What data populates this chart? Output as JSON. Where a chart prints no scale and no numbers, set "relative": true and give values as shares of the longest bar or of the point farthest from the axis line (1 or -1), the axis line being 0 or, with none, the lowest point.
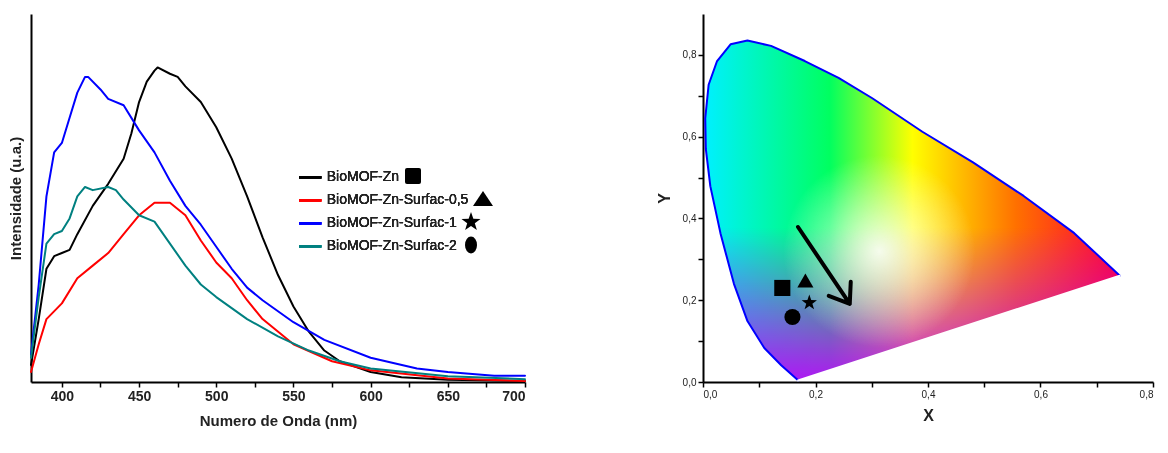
{
  "chart_data": [
    {
      "type": "line",
      "relative": true,
      "xlabel": "Numero de Onda (nm)",
      "ylabel": "Intensidade (u.a.)",
      "xlim": [
        380,
        700
      ],
      "xticks": [
        400,
        {
          "value": 425,
          "label": null
        },
        450,
        {
          "value": 475,
          "label": null
        },
        500,
        {
          "value": 525,
          "label": null
        },
        550,
        {
          "value": 575,
          "label": null
        },
        600,
        {
          "value": 625,
          "label": null
        },
        650,
        {
          "value": 675,
          "label": null
        },
        700
      ],
      "legend": "right",
      "grid": false,
      "marker": "none",
      "line_style": "solid",
      "series": [
        {
          "name": "BioMOF-Zn",
          "color": "#000000",
          "x": [
            380,
            385,
            390,
            395,
            400,
            405,
            410,
            420,
            430,
            440,
            445,
            450,
            455,
            460,
            462,
            470,
            475,
            480,
            490,
            500,
            510,
            520,
            530,
            540,
            550,
            560,
            570,
            580,
            600,
            620,
            650,
            700
          ],
          "values": [
            0.054,
            0.2,
            0.36,
            0.4,
            0.41,
            0.42,
            0.47,
            0.56,
            0.63,
            0.71,
            0.79,
            0.89,
            0.955,
            0.99,
            1,
            0.98,
            0.97,
            0.94,
            0.89,
            0.81,
            0.71,
            0.59,
            0.46,
            0.34,
            0.24,
            0.16,
            0.1,
            0.066,
            0.032,
            0.015,
            0.007,
            0.003
          ]
        },
        {
          "name": "BioMOF-Zn-Surfac-0,5",
          "color": "#ff0000",
          "x": [
            380,
            385,
            390,
            400,
            410,
            420,
            430,
            440,
            450,
            460,
            470,
            480,
            490,
            500,
            510,
            520,
            530,
            550,
            575,
            600,
            650,
            700
          ],
          "values": [
            0.032,
            0.12,
            0.2,
            0.25,
            0.33,
            0.37,
            0.41,
            0.47,
            0.53,
            0.57,
            0.57,
            0.53,
            0.45,
            0.38,
            0.33,
            0.26,
            0.2,
            0.12,
            0.066,
            0.037,
            0.011,
            0.003
          ]
        },
        {
          "name": "BioMOF-Zn-Surfac-1",
          "color": "#0000ff",
          "x": [
            380,
            385,
            390,
            395,
            400,
            405,
            410,
            415,
            417,
            425,
            430,
            440,
            450,
            460,
            470,
            480,
            490,
            500,
            510,
            520,
            530,
            550,
            570,
            600,
            630,
            650,
            680,
            700
          ],
          "values": [
            0.088,
            0.31,
            0.59,
            0.73,
            0.76,
            0.84,
            0.92,
            0.97,
            0.97,
            0.93,
            0.9,
            0.88,
            0.8,
            0.73,
            0.64,
            0.56,
            0.5,
            0.43,
            0.36,
            0.3,
            0.26,
            0.19,
            0.134,
            0.077,
            0.043,
            0.032,
            0.02,
            0.02
          ]
        },
        {
          "name": "BioMOF-Zn-Surfac-2",
          "color": "#008080",
          "x": [
            380,
            385,
            390,
            395,
            400,
            405,
            410,
            415,
            420,
            430,
            435,
            440,
            450,
            460,
            470,
            480,
            490,
            500,
            520,
            540,
            560,
            580,
            600,
            650,
            700
          ],
          "values": [
            0.077,
            0.27,
            0.44,
            0.47,
            0.48,
            0.52,
            0.59,
            0.62,
            0.61,
            0.62,
            0.61,
            0.58,
            0.53,
            0.51,
            0.44,
            0.37,
            0.31,
            0.27,
            0.2,
            0.145,
            0.1,
            0.066,
            0.043,
            0.018,
            0.009
          ]
        }
      ]
    },
    {
      "type": "scatter",
      "xlabel": "X",
      "ylabel": "Y",
      "xlim": [
        0,
        0.8
      ],
      "ylim": [
        0,
        0.9
      ],
      "xticks": [
        {
          "value": 0,
          "label": "0,0"
        },
        {
          "value": 0.1,
          "label": null
        },
        {
          "value": 0.2,
          "label": "0,2"
        },
        {
          "value": 0.3,
          "label": null
        },
        {
          "value": 0.4,
          "label": "0,4"
        },
        {
          "value": 0.5,
          "label": null
        },
        {
          "value": 0.6,
          "label": "0,6"
        },
        {
          "value": 0.7,
          "label": null
        },
        {
          "value": 0.8,
          "label": "0,8"
        }
      ],
      "yticks": [
        {
          "value": 0,
          "label": "0,0"
        },
        {
          "value": 0.1,
          "label": null
        },
        {
          "value": 0.2,
          "label": "0,2"
        },
        {
          "value": 0.3,
          "label": null
        },
        {
          "value": 0.4,
          "label": "0,4"
        },
        {
          "value": 0.5,
          "label": null
        },
        {
          "value": 0.6,
          "label": "0,6"
        },
        {
          "value": 0.7,
          "label": null
        },
        {
          "value": 0.8,
          "label": "0,8"
        }
      ],
      "grid": false,
      "series": [
        {
          "type": "line",
          "color": "#0000ff",
          "x": [
            0.169,
            0.139,
            0.109,
            0.079,
            0.055,
            0.031,
            0.013,
            0.005,
            0.004,
            0.01,
            0.025,
            0.049,
            0.079,
            0.121,
            0.181,
            0.241,
            0.301,
            0.39,
            0.48,
            0.57,
            0.66,
            0.741
          ],
          "values": [
            0.004,
            0.041,
            0.083,
            0.149,
            0.24,
            0.364,
            0.479,
            0.57,
            0.645,
            0.727,
            0.785,
            0.826,
            0.835,
            0.822,
            0.785,
            0.744,
            0.694,
            0.612,
            0.537,
            0.455,
            0.364,
            0.26
          ]
        },
        {
          "type": "line",
          "color": "#ffffff",
          "x": [
            0.741,
            0.169
          ],
          "values": [
            0.26,
            0.004
          ]
        },
        {
          "color": "#000000",
          "marker": "square",
          "x": [
            0.141
          ],
          "values": [
            0.23
          ]
        },
        {
          "color": "#000000",
          "marker": "triangle",
          "x": [
            0.182
          ],
          "values": [
            0.248
          ]
        },
        {
          "color": "#000000",
          "marker": "star",
          "x": [
            0.189
          ],
          "values": [
            0.194
          ]
        },
        {
          "color": "#000000",
          "marker": "circle",
          "x": [
            0.159
          ],
          "values": [
            0.159
          ]
        }
      ]
    }
  ]
}
